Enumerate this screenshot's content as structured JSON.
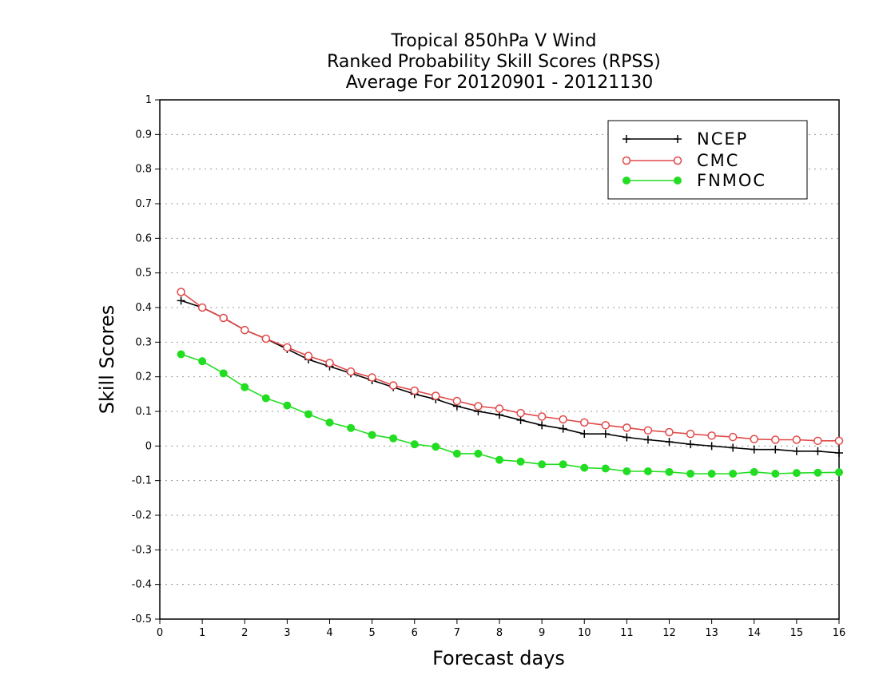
{
  "chart_data": {
    "type": "line",
    "title": [
      "Tropical 850hPa V Wind",
      "Ranked Probability Skill Scores (RPSS)",
      "Average For 20120901 - 20121130"
    ],
    "xlabel": "Forecast days",
    "ylabel": "Skill Scores",
    "xlim": [
      0,
      16
    ],
    "ylim": [
      -0.5,
      1
    ],
    "xticks": [
      "0",
      "1",
      "2",
      "3",
      "4",
      "5",
      "6",
      "7",
      "8",
      "9",
      "10",
      "11",
      "12",
      "13",
      "14",
      "15",
      "16"
    ],
    "yticks": [
      "-0.5",
      "-0.4",
      "-0.3",
      "-0.2",
      "-0.1",
      "0",
      "0.1",
      "0.2",
      "0.3",
      "0.4",
      "0.5",
      "0.6",
      "0.7",
      "0.8",
      "0.9",
      "1"
    ],
    "grid": "horizontal-dotted",
    "legend_position": "top-right",
    "x": [
      0.5,
      1,
      1.5,
      2,
      2.5,
      3,
      3.5,
      4,
      4.5,
      5,
      5.5,
      6,
      6.5,
      7,
      7.5,
      8,
      8.5,
      9,
      9.5,
      10,
      10.5,
      11,
      11.5,
      12,
      12.5,
      13,
      13.5,
      14,
      14.5,
      15,
      15.5,
      16
    ],
    "series": [
      {
        "name": "NCEP",
        "color": "#000000",
        "marker": "plus",
        "values": [
          0.42,
          0.4,
          0.37,
          0.335,
          0.31,
          0.28,
          0.25,
          0.23,
          0.21,
          0.19,
          0.17,
          0.15,
          0.135,
          0.115,
          0.1,
          0.09,
          0.075,
          0.06,
          0.05,
          0.035,
          0.035,
          0.025,
          0.018,
          0.012,
          0.005,
          0.0,
          -0.005,
          -0.01,
          -0.01,
          -0.015,
          -0.015,
          -0.02
        ]
      },
      {
        "name": "CMC",
        "color": "#e04848",
        "marker": "open-circle",
        "values": [
          0.445,
          0.4,
          0.37,
          0.335,
          0.31,
          0.285,
          0.26,
          0.24,
          0.215,
          0.198,
          0.175,
          0.16,
          0.145,
          0.13,
          0.115,
          0.108,
          0.095,
          0.085,
          0.077,
          0.068,
          0.06,
          0.053,
          0.045,
          0.04,
          0.035,
          0.03,
          0.026,
          0.02,
          0.018,
          0.018,
          0.015,
          0.015
        ]
      },
      {
        "name": "FNMOC",
        "color": "#22dd22",
        "marker": "filled-circle",
        "values": [
          0.265,
          0.245,
          0.21,
          0.17,
          0.138,
          0.117,
          0.092,
          0.068,
          0.052,
          0.032,
          0.022,
          0.005,
          -0.002,
          -0.022,
          -0.022,
          -0.04,
          -0.045,
          -0.053,
          -0.053,
          -0.063,
          -0.065,
          -0.073,
          -0.073,
          -0.075,
          -0.08,
          -0.08,
          -0.08,
          -0.075,
          -0.08,
          -0.078,
          -0.077,
          -0.076
        ]
      }
    ]
  }
}
